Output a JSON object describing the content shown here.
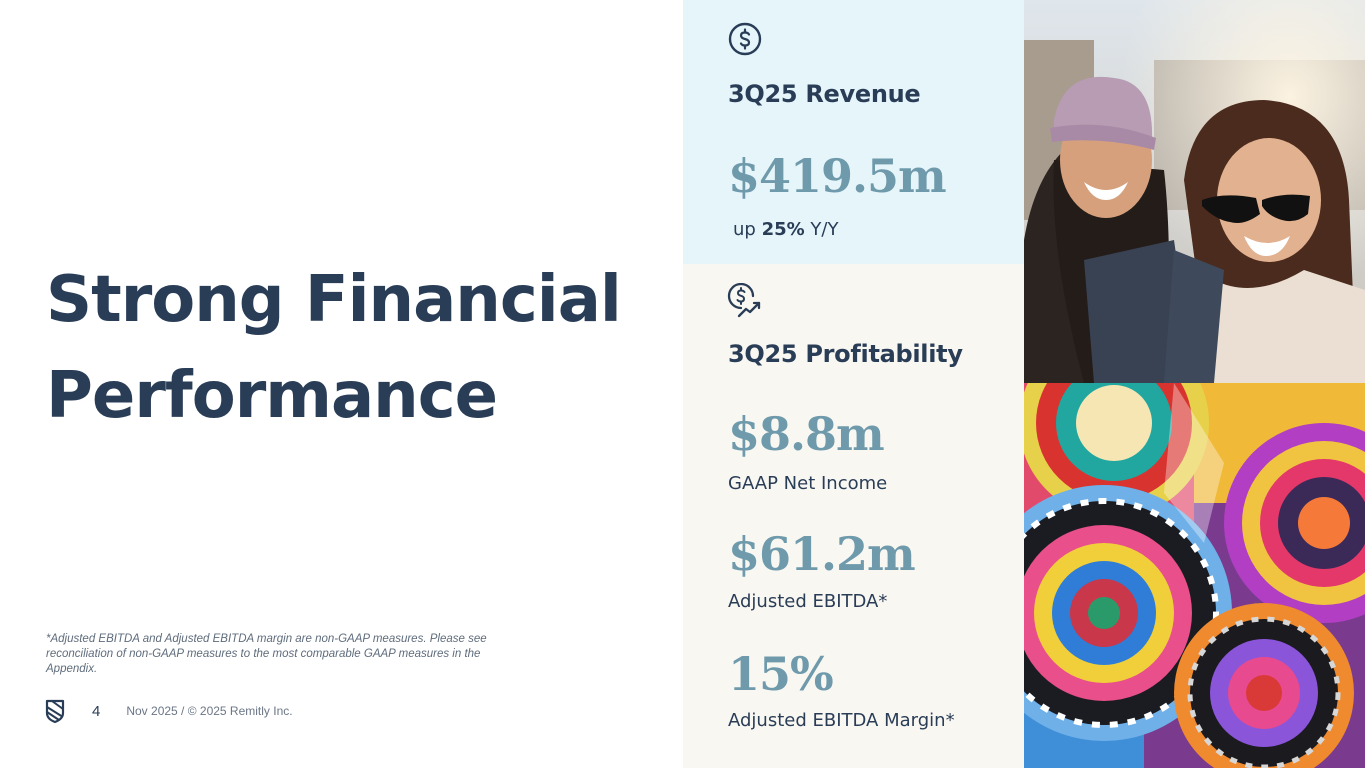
{
  "slide": {
    "title_line1": "Strong Financial",
    "title_line2": "Performance",
    "footnote": "*Adjusted EBITDA and Adjusted EBITDA margin are non-GAAP measures. Please see reconciliation of non-GAAP measures to the most comparable GAAP measures in the Appendix.",
    "page_number": "4",
    "footer_text": "Nov 2025 / © 2025 Remitly Inc."
  },
  "revenue": {
    "icon": "dollar-circle-icon",
    "heading": "3Q25 Revenue",
    "value": "$419.5m",
    "growth_prefix": "up",
    "growth_value": "25%",
    "growth_suffix": "Y/Y"
  },
  "profitability": {
    "icon": "dollar-growth-icon",
    "heading": "3Q25 Profitability",
    "metrics": [
      {
        "value": "$8.8m",
        "label": "GAAP Net Income"
      },
      {
        "value": "$61.2m",
        "label": "Adjusted EBITDA*"
      },
      {
        "value": "15%",
        "label": "Adjusted EBITDA Margin*"
      }
    ]
  },
  "colors": {
    "navy": "#2a3d57",
    "accent_teal": "#6f9aab",
    "revenue_bg": "#e6f5fa",
    "profit_bg": "#f9f7f2"
  }
}
